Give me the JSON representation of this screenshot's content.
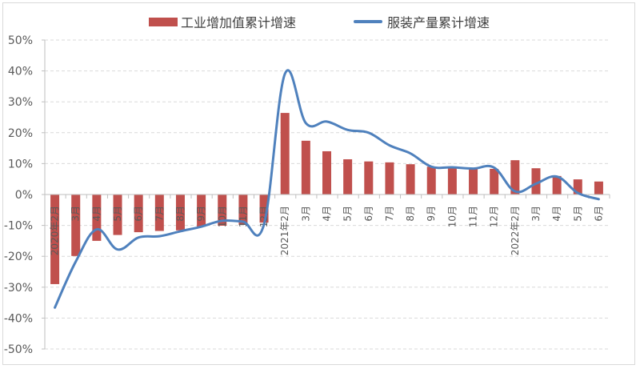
{
  "colors": {
    "bar": "#c0504d",
    "line": "#4f81bd",
    "grid": "#d9d9d9",
    "axis": "#bfbfbf",
    "text": "#595959"
  },
  "legend": {
    "bar_label": "工业增加值累计增速",
    "line_label": "服装产量累计增速"
  },
  "chart_data": {
    "type": "bar+line",
    "title": "",
    "xlabel": "",
    "ylabel": "",
    "ylim": [
      -0.5,
      0.5
    ],
    "yticks": [
      "50%",
      "40%",
      "30%",
      "20%",
      "10%",
      "0%",
      "-10%",
      "-20%",
      "-30%",
      "-40%",
      "-50%"
    ],
    "grid": true,
    "legend_position": "top",
    "categories": [
      "2020年2月",
      "3月",
      "4月",
      "5月",
      "6月",
      "7月",
      "8月",
      "9月",
      "10月",
      "11月",
      "12月",
      "2021年2月",
      "3月",
      "4月",
      "5月",
      "6月",
      "7月",
      "8月",
      "9月",
      "10月",
      "11月",
      "12月",
      "2022年2月",
      "3月",
      "4月",
      "5月",
      "6月"
    ],
    "series": [
      {
        "name": "工业增加值累计增速",
        "type": "bar",
        "values": [
          -29.0,
          -19.9,
          -15.0,
          -13.1,
          -12.2,
          -11.8,
          -11.6,
          -10.4,
          -10.1,
          -9.8,
          -9.1,
          26.4,
          17.4,
          14.0,
          11.4,
          10.7,
          10.4,
          9.8,
          9.0,
          8.8,
          8.4,
          8.3,
          11.1,
          8.5,
          6.0,
          4.9,
          4.2
        ]
      },
      {
        "name": "服装产量累计增速",
        "type": "line",
        "smooth": true,
        "values": [
          -36.6,
          -21.7,
          -11.3,
          -17.8,
          -13.9,
          -13.5,
          -11.9,
          -10.4,
          -8.5,
          -8.8,
          -9.6,
          39.1,
          23.1,
          23.6,
          20.9,
          20.0,
          15.9,
          13.3,
          9.0,
          8.8,
          8.4,
          8.7,
          1.0,
          3.5,
          5.8,
          0.5,
          -1.5
        ]
      }
    ]
  }
}
